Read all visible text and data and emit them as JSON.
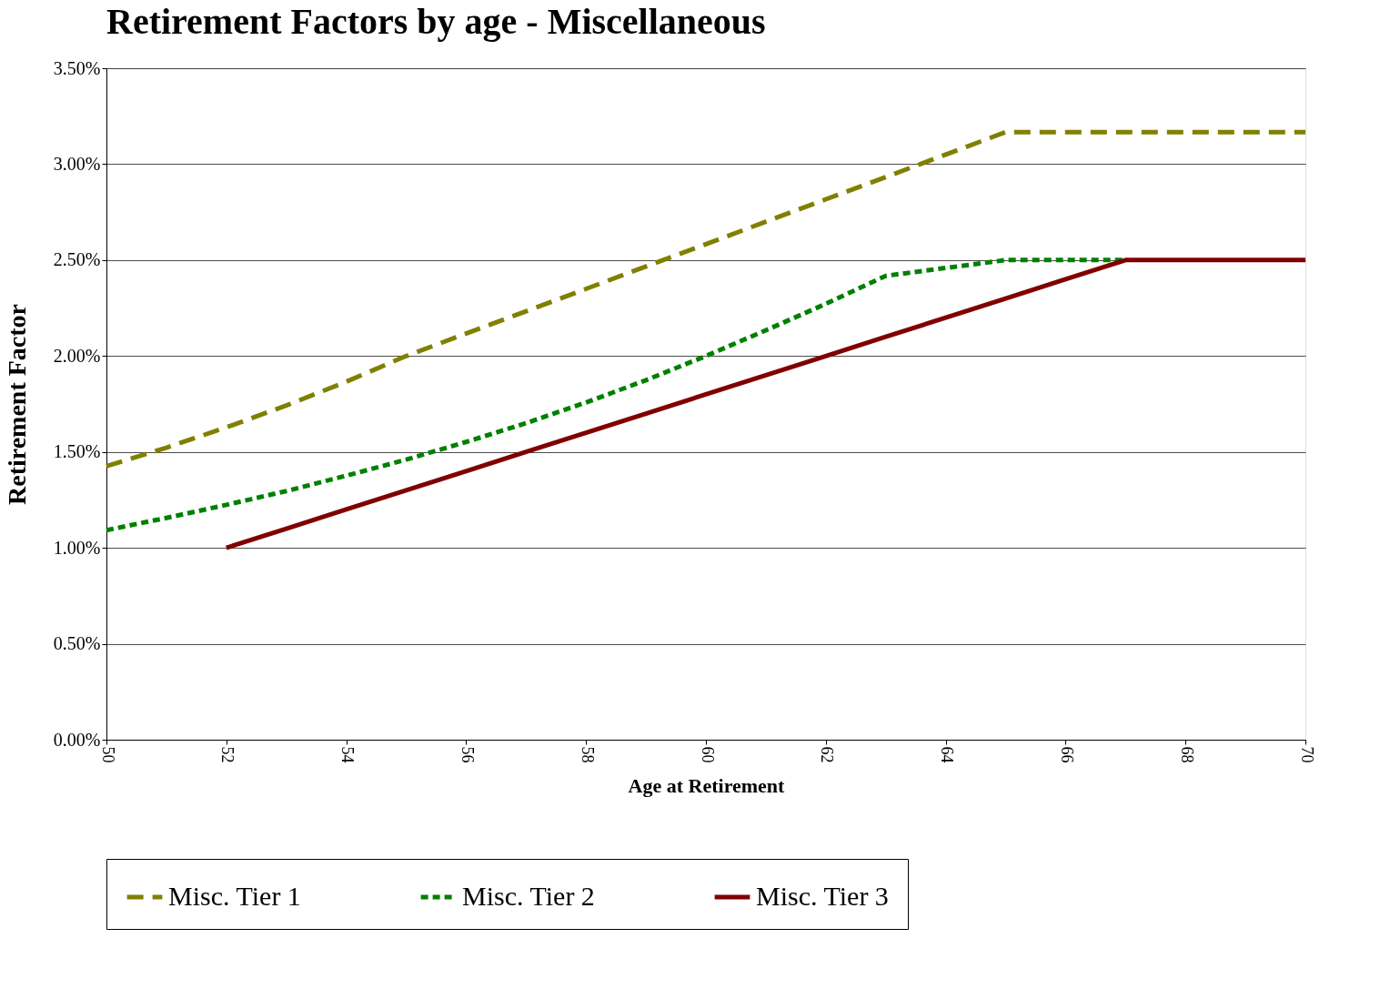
{
  "chart_data": {
    "type": "line",
    "title": "Retirement Factors by age - Miscellaneous",
    "xlabel": "Age at Retirement",
    "ylabel": "Retirement Factor",
    "x": [
      50,
      51,
      52,
      53,
      54,
      55,
      56,
      57,
      58,
      59,
      60,
      61,
      62,
      63,
      64,
      65,
      66,
      67,
      68,
      69,
      70
    ],
    "series": [
      {
        "name": "Misc. Tier 1",
        "color": "#808000",
        "line_style": "dashed",
        "values": [
          1.426,
          1.522,
          1.628,
          1.742,
          1.866,
          2.0,
          2.117,
          2.233,
          2.35,
          2.467,
          2.583,
          2.7,
          2.817,
          2.933,
          3.05,
          3.167,
          3.167,
          3.167,
          3.167,
          3.167,
          3.167
        ]
      },
      {
        "name": "Misc. Tier 2",
        "color": "#008000",
        "line_style": "dotted",
        "values": [
          1.092,
          1.156,
          1.224,
          1.296,
          1.376,
          1.46,
          1.552,
          1.65,
          1.758,
          1.874,
          2.0,
          2.134,
          2.272,
          2.418,
          2.459,
          2.5,
          2.5,
          2.5,
          null,
          null,
          null
        ]
      },
      {
        "name": "Misc. Tier 3",
        "color": "#800000",
        "line_style": "solid",
        "values": [
          null,
          null,
          1.0,
          1.1,
          1.2,
          1.3,
          1.4,
          1.5,
          1.6,
          1.7,
          1.8,
          1.9,
          2.0,
          2.1,
          2.2,
          2.3,
          2.4,
          2.5,
          2.5,
          2.5,
          2.5
        ]
      }
    ],
    "xlim": [
      50,
      70
    ],
    "xticks": [
      50,
      52,
      54,
      56,
      58,
      60,
      62,
      64,
      66,
      68,
      70
    ],
    "ylim": [
      0,
      3.5
    ],
    "yticks": [
      {
        "value": 0,
        "label": "0.00%"
      },
      {
        "value": 0.5,
        "label": "0.50%"
      },
      {
        "value": 1,
        "label": "1.00%"
      },
      {
        "value": 1.5,
        "label": "1.50%"
      },
      {
        "value": 2,
        "label": "2.00%"
      },
      {
        "value": 2.5,
        "label": "2.50%"
      },
      {
        "value": 3,
        "label": "3.00%"
      },
      {
        "value": 3.5,
        "label": "3.50%"
      }
    ],
    "grid": "y",
    "legend": "bottom",
    "marker": "none"
  }
}
